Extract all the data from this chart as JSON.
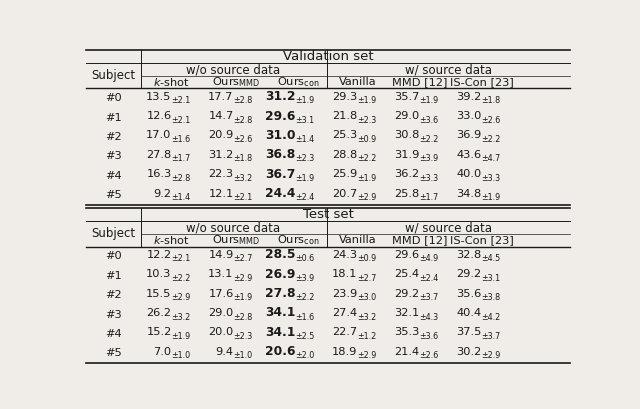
{
  "title_val": "Validation set",
  "title_test": "Test set",
  "subjects": [
    "#0",
    "#1",
    "#2",
    "#3",
    "#4",
    "#5"
  ],
  "val_data": [
    [
      "13.5",
      "2.1",
      "17.7",
      "2.8",
      "31.2",
      "1.9",
      "29.3",
      "1.9",
      "35.7",
      "1.9",
      "39.2",
      "1.8"
    ],
    [
      "12.6",
      "2.1",
      "14.7",
      "2.8",
      "29.6",
      "3.1",
      "21.8",
      "2.3",
      "29.0",
      "3.6",
      "33.0",
      "2.6"
    ],
    [
      "17.0",
      "1.6",
      "20.9",
      "2.6",
      "31.0",
      "1.4",
      "25.3",
      "0.9",
      "30.8",
      "2.2",
      "36.9",
      "2.2"
    ],
    [
      "27.8",
      "1.7",
      "31.2",
      "1.8",
      "36.8",
      "2.3",
      "28.8",
      "2.2",
      "31.9",
      "3.9",
      "43.6",
      "4.7"
    ],
    [
      "16.3",
      "2.8",
      "22.3",
      "3.2",
      "36.7",
      "1.9",
      "25.9",
      "1.9",
      "36.2",
      "3.3",
      "40.0",
      "3.3"
    ],
    [
      "9.2",
      "1.4",
      "12.1",
      "2.1",
      "24.4",
      "2.4",
      "20.7",
      "2.9",
      "25.8",
      "1.7",
      "34.8",
      "1.9"
    ]
  ],
  "test_data": [
    [
      "12.2",
      "2.1",
      "14.9",
      "2.7",
      "28.5",
      "0.6",
      "24.3",
      "0.9",
      "29.6",
      "4.9",
      "32.8",
      "4.5"
    ],
    [
      "10.3",
      "2.2",
      "13.1",
      "2.9",
      "26.9",
      "3.9",
      "18.1",
      "2.7",
      "25.4",
      "2.4",
      "29.2",
      "3.1"
    ],
    [
      "15.5",
      "2.9",
      "17.6",
      "1.9",
      "27.8",
      "2.2",
      "23.9",
      "3.0",
      "29.2",
      "3.7",
      "35.6",
      "3.8"
    ],
    [
      "26.2",
      "3.2",
      "29.0",
      "2.8",
      "34.1",
      "1.6",
      "27.4",
      "3.2",
      "32.1",
      "4.3",
      "40.4",
      "4.2"
    ],
    [
      "15.2",
      "1.9",
      "20.0",
      "2.3",
      "34.1",
      "2.5",
      "22.7",
      "1.2",
      "35.3",
      "3.6",
      "37.5",
      "3.7"
    ],
    [
      "7.0",
      "1.0",
      "9.4",
      "1.0",
      "20.6",
      "2.0",
      "18.9",
      "2.9",
      "21.4",
      "2.6",
      "30.2",
      "2.9"
    ]
  ],
  "bold_col_idx": 2,
  "bg_color": "#f0ede8",
  "line_color": "#1a1a1a",
  "text_color": "#1a1a1a"
}
